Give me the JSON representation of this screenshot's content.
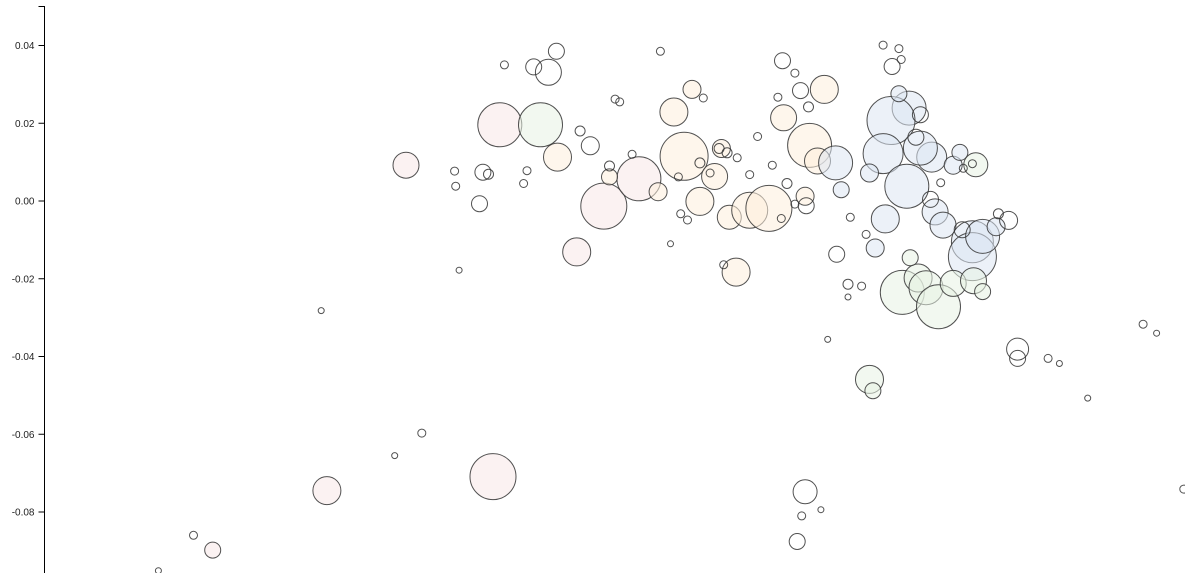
{
  "chart_data": {
    "type": "scatter",
    "title": "",
    "xlabel": "",
    "ylabel": "",
    "y_ticks": [
      "0.04",
      "0.02",
      "0.00",
      "-0.02",
      "-0.04",
      "-0.06",
      "-0.08"
    ],
    "y_tick_values": [
      0.04,
      0.02,
      0.0,
      -0.02,
      -0.04,
      -0.06,
      -0.08
    ],
    "ylim": [
      -0.0955,
      0.0505
    ],
    "xlim": [
      0,
      100
    ],
    "grid": false,
    "legend": "none",
    "note": "bubble chart; point x positions are in arbitrary units (no x axis shown), size encodes a magnitude",
    "groups": [
      {
        "color": "#f8e8e8",
        "points": [
          [
            29.5,
            0.0092,
            13
          ],
          [
            37.8,
            0.0196,
            22
          ],
          [
            47.0,
            -0.0013,
            23
          ],
          [
            44.6,
            -0.0131,
            14
          ],
          [
            37.2,
            -0.0709,
            23
          ],
          [
            22.5,
            -0.0745,
            14
          ],
          [
            50.1,
            0.0057,
            22
          ],
          [
            12.4,
            -0.0898,
            8
          ]
        ]
      },
      {
        "color": "#fdeedd",
        "points": [
          [
            51.8,
            0.0024,
            9
          ],
          [
            53.2,
            0.0229,
            14
          ],
          [
            54.1,
            0.0115,
            24
          ],
          [
            56.8,
            0.0063,
            13
          ],
          [
            58.1,
            -0.0042,
            12
          ],
          [
            59.9,
            -0.0024,
            18
          ],
          [
            61.6,
            -0.0019,
            23
          ],
          [
            55.5,
            -0.0001,
            14
          ],
          [
            58.7,
            -0.0183,
            14
          ],
          [
            62.9,
            0.0214,
            13
          ],
          [
            65.2,
            0.0143,
            22
          ],
          [
            65.9,
            0.0103,
            13
          ],
          [
            64.8,
            0.0012,
            9
          ],
          [
            66.5,
            0.0287,
            14
          ],
          [
            54.8,
            0.0287,
            9
          ],
          [
            57.4,
            0.0135,
            9
          ],
          [
            42.9,
            0.0113,
            14
          ],
          [
            47.5,
            0.0062,
            8
          ]
        ]
      },
      {
        "color": "#dde6f3",
        "points": [
          [
            74.0,
            0.0239,
            17
          ],
          [
            72.4,
            0.0207,
            24
          ],
          [
            71.7,
            0.0122,
            20
          ],
          [
            73.8,
            0.0038,
            22
          ],
          [
            76.0,
            0.0113,
            15
          ],
          [
            77.9,
            0.0092,
            9
          ],
          [
            76.3,
            -0.0028,
            13
          ],
          [
            77.0,
            -0.0062,
            13
          ],
          [
            79.6,
            -0.0105,
            21
          ],
          [
            79.6,
            -0.0143,
            24
          ],
          [
            80.5,
            -0.0091,
            17
          ],
          [
            81.7,
            -0.0066,
            9
          ],
          [
            73.1,
            0.0276,
            8
          ],
          [
            75.0,
            0.0136,
            17
          ],
          [
            71.9,
            -0.0046,
            14
          ],
          [
            71.0,
            -0.0121,
            9
          ],
          [
            70.5,
            0.0072,
            9
          ],
          [
            68.0,
            0.0029,
            8
          ],
          [
            78.5,
            0.0125,
            8
          ],
          [
            67.5,
            0.0098,
            17
          ]
        ]
      },
      {
        "color": "#e8f3e3",
        "points": [
          [
            73.4,
            -0.0235,
            22
          ],
          [
            74.8,
            -0.0198,
            14
          ],
          [
            75.5,
            -0.0223,
            17
          ],
          [
            76.6,
            -0.0272,
            22
          ],
          [
            77.9,
            -0.0212,
            13
          ],
          [
            79.7,
            -0.0205,
            13
          ],
          [
            74.1,
            -0.0146,
            8
          ],
          [
            70.5,
            -0.0459,
            14
          ],
          [
            70.8,
            -0.0488,
            8
          ],
          [
            80.5,
            -0.0233,
            8
          ],
          [
            41.4,
            0.0196,
            22
          ],
          [
            79.9,
            0.0093,
            12
          ]
        ]
      },
      {
        "color": "#ffffff",
        "points": [
          [
            42.8,
            0.0385,
            8
          ],
          [
            42.1,
            0.0331,
            13
          ],
          [
            40.8,
            0.0345,
            8
          ],
          [
            38.2,
            0.035,
            4
          ],
          [
            52.0,
            0.0385,
            4
          ],
          [
            48.4,
            0.0255,
            4
          ],
          [
            44.9,
            0.018,
            5
          ],
          [
            40.2,
            0.0078,
            4
          ],
          [
            39.9,
            0.0045,
            4
          ],
          [
            36.8,
            0.0069,
            5
          ],
          [
            36.3,
            0.0074,
            8
          ],
          [
            33.9,
            0.0038,
            4
          ],
          [
            33.8,
            0.0077,
            4
          ],
          [
            36.0,
            -0.0007,
            8
          ],
          [
            48.0,
            0.0262,
            4
          ],
          [
            55.8,
            0.0265,
            4
          ],
          [
            57.2,
            0.0135,
            5
          ],
          [
            57.9,
            0.0124,
            5
          ],
          [
            60.6,
            0.0166,
            4
          ],
          [
            62.4,
            0.0267,
            4
          ],
          [
            62.8,
            0.0361,
            8
          ],
          [
            63.9,
            0.0329,
            4
          ],
          [
            64.4,
            0.0284,
            8
          ],
          [
            65.1,
            0.0242,
            5
          ],
          [
            63.2,
            0.0045,
            5
          ],
          [
            61.9,
            0.0092,
            4
          ],
          [
            62.7,
            -0.0045,
            4
          ],
          [
            63.9,
            -0.0008,
            4
          ],
          [
            64.9,
            -0.0012,
            8
          ],
          [
            67.6,
            -0.0137,
            8
          ],
          [
            68.8,
            -0.0042,
            4
          ],
          [
            70.2,
            -0.0086,
            4
          ],
          [
            71.7,
            0.0401,
            4
          ],
          [
            72.5,
            0.0346,
            8
          ],
          [
            73.1,
            0.0392,
            4
          ],
          [
            73.3,
            0.0364,
            4
          ],
          [
            74.6,
            0.0164,
            8
          ],
          [
            75.0,
            0.0222,
            8
          ],
          [
            75.9,
            0.0004,
            8
          ],
          [
            76.8,
            0.0047,
            4
          ],
          [
            78.7,
            -0.0074,
            8
          ],
          [
            78.8,
            0.0084,
            4
          ],
          [
            79.6,
            0.0096,
            4
          ],
          [
            81.9,
            -0.0033,
            5
          ],
          [
            82.8,
            -0.005,
            9
          ],
          [
            83.6,
            -0.0381,
            11
          ],
          [
            83.6,
            -0.0405,
            8
          ],
          [
            86.3,
            -0.0405,
            4
          ],
          [
            87.3,
            -0.0418,
            3
          ],
          [
            89.8,
            -0.0507,
            3
          ],
          [
            94.7,
            -0.0317,
            4
          ],
          [
            95.9,
            -0.034,
            3
          ],
          [
            98.3,
            -0.0741,
            4
          ],
          [
            64.8,
            -0.0748,
            12
          ],
          [
            64.5,
            -0.081,
            4
          ],
          [
            66.2,
            -0.0794,
            3
          ],
          [
            64.1,
            -0.0876,
            8
          ],
          [
            22.0,
            -0.0282,
            3
          ],
          [
            34.2,
            -0.0178,
            3
          ],
          [
            30.9,
            -0.0597,
            4
          ],
          [
            28.5,
            -0.0655,
            3
          ],
          [
            10.7,
            -0.086,
            4
          ],
          [
            7.6,
            -0.0951,
            3
          ],
          [
            66.8,
            -0.0356,
            3
          ],
          [
            68.6,
            -0.0214,
            5
          ],
          [
            68.6,
            -0.0247,
            3
          ],
          [
            69.8,
            -0.0219,
            4
          ],
          [
            57.6,
            -0.0164,
            4
          ],
          [
            45.8,
            0.0142,
            9
          ],
          [
            47.5,
            0.009,
            5
          ],
          [
            49.5,
            0.012,
            4
          ],
          [
            53.6,
            0.0062,
            4
          ],
          [
            53.8,
            -0.0033,
            4
          ],
          [
            52.9,
            -0.011,
            3
          ],
          [
            54.4,
            -0.0049,
            4
          ],
          [
            55.5,
            0.0098,
            5
          ],
          [
            56.4,
            0.0072,
            4
          ],
          [
            58.8,
            0.0111,
            4
          ],
          [
            59.9,
            0.0068,
            4
          ]
        ]
      }
    ]
  }
}
